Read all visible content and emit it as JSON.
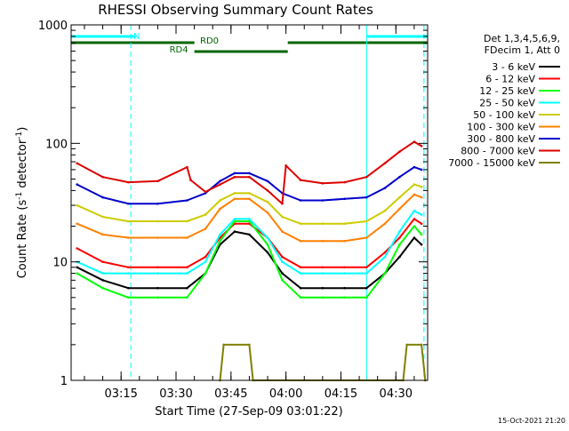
{
  "chart_data": {
    "type": "line",
    "title": "RHESSI Observing Summary Count Rates",
    "xlabel": "Start Time (27-Sep-09 03:01:22)",
    "ylabel_main": "Count Rate (s",
    "ylabel_sup1": "-1",
    "ylabel_mid": " detector",
    "ylabel_sup2": "-1",
    "ylabel_end": ")",
    "yscale": "log",
    "ylim": [
      1,
      1000
    ],
    "xlim": [
      "03:01:22",
      "04:38:40"
    ],
    "xticks": [
      "03:15",
      "03:30",
      "03:45",
      "04:00",
      "04:15",
      "04:30"
    ],
    "yticks": [
      "1",
      "10",
      "100",
      "1000"
    ],
    "grid": false,
    "legend_header": [
      "Det 1,3,4,5,6,9,",
      "FDecim 1, Att 0"
    ],
    "legend_position": "right",
    "timestamp": "15-Oct-2021 21:20",
    "flags": [
      {
        "label": "N",
        "color": "#00ffff",
        "segments": [
          [
            "03:01:22",
            "03:19:00"
          ],
          [
            "04:22:00",
            "04:38:40"
          ]
        ]
      },
      {
        "label": "RD0",
        "color": "#006600",
        "segments": [
          [
            "03:01:22",
            "03:35:00"
          ],
          [
            "04:00:30",
            "04:38:40"
          ]
        ]
      },
      {
        "label": "RD4",
        "color": "#006600",
        "segments": [
          [
            "03:35:00",
            "04:00:30"
          ]
        ]
      }
    ],
    "markers": [
      {
        "time": "03:01:22",
        "style": "solid",
        "color": "#00ffff"
      },
      {
        "time": "03:17:40",
        "style": "dashed",
        "color": "#00ffff"
      },
      {
        "time": "04:22:00",
        "style": "solid",
        "color": "#00ffff"
      },
      {
        "time": "04:37:40",
        "style": "dashed",
        "color": "#00ffff"
      }
    ],
    "series": [
      {
        "name": "3 - 6 keV",
        "color": "#000000",
        "x": [
          "03:03",
          "03:10",
          "03:17",
          "03:25",
          "03:33",
          "03:38",
          "03:42",
          "03:46",
          "03:50",
          "03:55",
          "03:59",
          "04:04",
          "04:10",
          "04:16",
          "04:22",
          "04:27",
          "04:31",
          "04:35",
          "04:37"
        ],
        "y": [
          9,
          7,
          6,
          6,
          6,
          8,
          14,
          18,
          17,
          12,
          8,
          6,
          6,
          6,
          6,
          8,
          11,
          16,
          14
        ]
      },
      {
        "name": "6 - 12 keV",
        "color": "#ff0000",
        "x": [
          "03:03",
          "03:10",
          "03:17",
          "03:25",
          "03:33",
          "03:38",
          "03:42",
          "03:46",
          "03:50",
          "03:55",
          "03:59",
          "04:04",
          "04:10",
          "04:16",
          "04:22",
          "04:27",
          "04:31",
          "04:35",
          "04:37"
        ],
        "y": [
          13,
          10,
          9,
          9,
          9,
          11,
          16,
          21,
          21,
          16,
          11,
          9,
          9,
          9,
          9,
          12,
          16,
          23,
          21
        ]
      },
      {
        "name": "12 - 25 keV",
        "color": "#00ff00",
        "x": [
          "03:03",
          "03:10",
          "03:17",
          "03:25",
          "03:33",
          "03:38",
          "03:42",
          "03:46",
          "03:50",
          "03:55",
          "03:59",
          "04:04",
          "04:10",
          "04:16",
          "04:22",
          "04:27",
          "04:31",
          "04:35",
          "04:37"
        ],
        "y": [
          8,
          6,
          5,
          5,
          5,
          8,
          15,
          22,
          22,
          14,
          7,
          5,
          5,
          5,
          5,
          8,
          14,
          20,
          17
        ]
      },
      {
        "name": "25 - 50 keV",
        "color": "#00ffff",
        "x": [
          "03:03",
          "03:10",
          "03:17",
          "03:25",
          "03:33",
          "03:38",
          "03:42",
          "03:46",
          "03:50",
          "03:55",
          "03:59",
          "04:04",
          "04:10",
          "04:16",
          "04:22",
          "04:27",
          "04:31",
          "04:35",
          "04:37"
        ],
        "y": [
          10,
          8,
          8,
          8,
          8,
          10,
          17,
          23,
          23,
          16,
          10,
          8,
          8,
          8,
          8,
          11,
          18,
          27,
          25
        ]
      },
      {
        "name": "50 - 100 keV",
        "color": "#cccc00",
        "x": [
          "03:03",
          "03:10",
          "03:17",
          "03:25",
          "03:33",
          "03:38",
          "03:42",
          "03:46",
          "03:50",
          "03:55",
          "03:59",
          "04:04",
          "04:10",
          "04:16",
          "04:22",
          "04:27",
          "04:31",
          "04:35",
          "04:37"
        ],
        "y": [
          30,
          24,
          22,
          22,
          22,
          25,
          33,
          38,
          38,
          32,
          24,
          21,
          21,
          21,
          22,
          27,
          35,
          45,
          43
        ]
      },
      {
        "name": "100 - 300 keV",
        "color": "#ff8000",
        "x": [
          "03:03",
          "03:10",
          "03:17",
          "03:25",
          "03:33",
          "03:38",
          "03:42",
          "03:46",
          "03:50",
          "03:55",
          "03:59",
          "04:04",
          "04:10",
          "04:16",
          "04:22",
          "04:27",
          "04:31",
          "04:35",
          "04:37"
        ],
        "y": [
          21,
          17,
          16,
          16,
          16,
          19,
          28,
          34,
          34,
          26,
          18,
          15,
          15,
          15,
          16,
          21,
          28,
          37,
          35
        ]
      },
      {
        "name": "300 - 800 keV",
        "color": "#0000cc",
        "x": [
          "03:03",
          "03:10",
          "03:17",
          "03:25",
          "03:33",
          "03:38",
          "03:42",
          "03:46",
          "03:50",
          "03:55",
          "03:59",
          "04:04",
          "04:10",
          "04:16",
          "04:22",
          "04:27",
          "04:31",
          "04:35",
          "04:37"
        ],
        "y": [
          45,
          35,
          31,
          31,
          33,
          38,
          48,
          56,
          56,
          48,
          38,
          33,
          33,
          34,
          35,
          42,
          52,
          63,
          60
        ]
      },
      {
        "name": "800 - 7000 keV",
        "color": "#dd0000",
        "x": [
          "03:03",
          "03:10",
          "03:17",
          "03:25",
          "03:33",
          "03:34",
          "03:38",
          "03:42",
          "03:46",
          "03:50",
          "03:55",
          "03:59",
          "04:00",
          "04:04",
          "04:10",
          "04:16",
          "04:22",
          "04:27",
          "04:31",
          "04:35",
          "04:37"
        ],
        "y": [
          68,
          52,
          47,
          48,
          63,
          49,
          39,
          45,
          52,
          52,
          40,
          31,
          65,
          49,
          46,
          47,
          52,
          68,
          85,
          103,
          95
        ]
      },
      {
        "name": "7000 - 15000 keV",
        "color": "#808000",
        "x": [
          "03:42",
          "03:43",
          "03:50",
          "03:51",
          "04:32",
          "04:33",
          "04:37",
          "04:38"
        ],
        "y": [
          1,
          2,
          2,
          1,
          1,
          2,
          2,
          1
        ]
      }
    ]
  }
}
